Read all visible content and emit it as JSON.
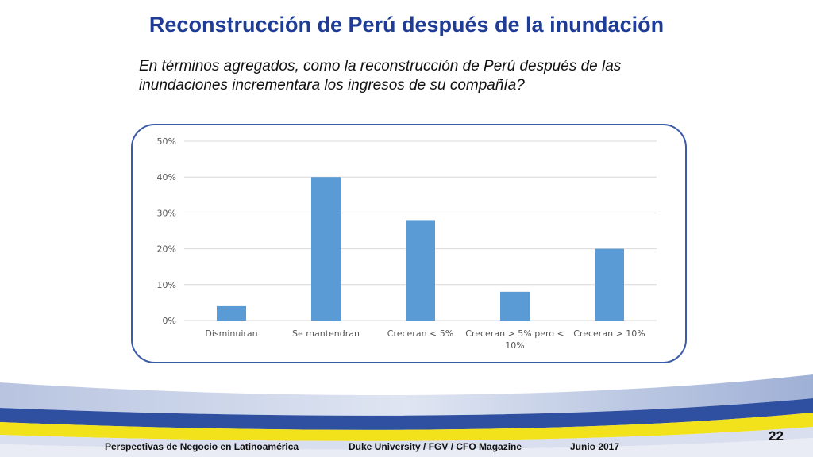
{
  "slide": {
    "title": "Reconstrucción de Perú después de la inundación",
    "question_line1": "En términos agregados, como la reconstrucción de Perú después de las",
    "question_line2": "inundaciones incrementara los ingresos de su compañía?"
  },
  "footer": {
    "left": "Perspectivas de Negocio en Latinoamérica",
    "center": "Duke University / FGV / CFO Magazine",
    "right": "Junio 2017",
    "page_number": "22"
  },
  "colors": {
    "title": "#1f3c96",
    "frame_border": "#3b5aa8",
    "bar": "#5b9bd5",
    "gridline": "#d9d9d9"
  },
  "chart_data": {
    "type": "bar",
    "categories": [
      [
        "Disminuiran"
      ],
      [
        "Se mantendran"
      ],
      [
        "Creceran < 5%"
      ],
      [
        "Creceran > 5% pero <",
        "10%"
      ],
      [
        "Creceran > 10%"
      ]
    ],
    "values": [
      4,
      40,
      28,
      8,
      20
    ],
    "y_ticks": [
      "0%",
      "10%",
      "20%",
      "30%",
      "40%",
      "50%"
    ],
    "ylim": [
      0,
      50
    ],
    "grid": true,
    "legend": "none"
  }
}
